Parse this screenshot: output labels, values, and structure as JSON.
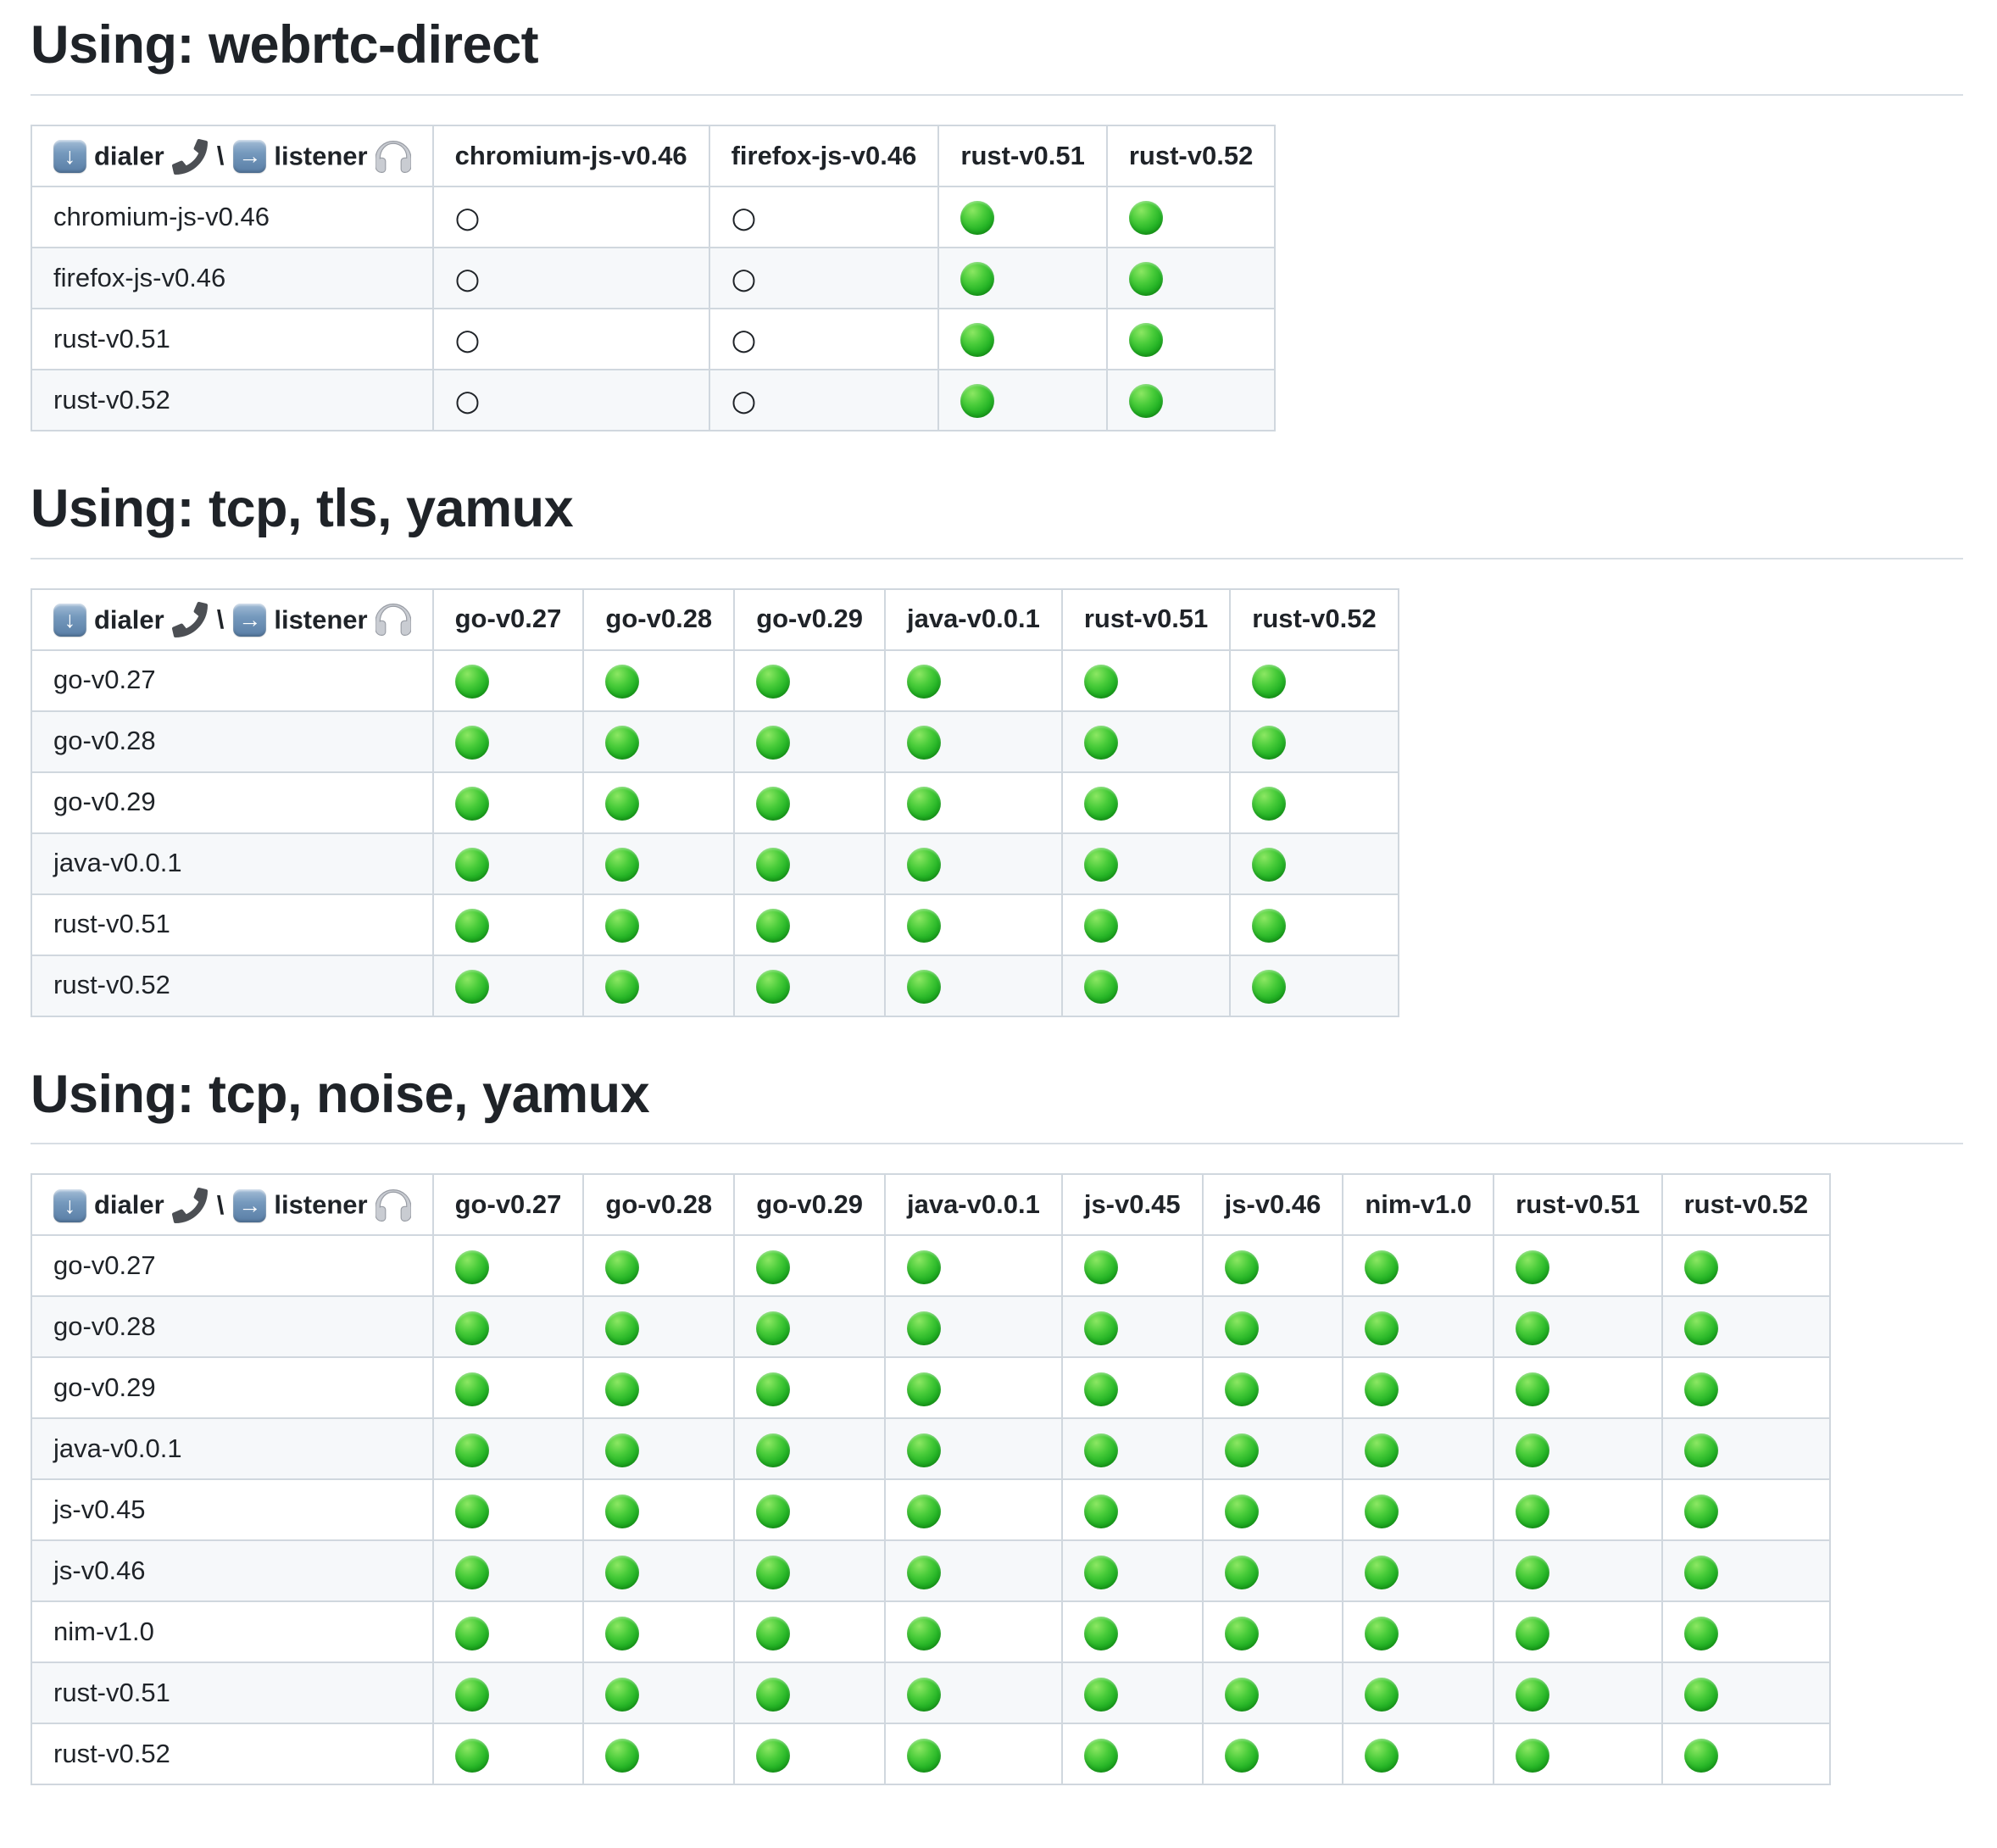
{
  "corner_header": {
    "dialer_label": "dialer",
    "listener_label": "listener",
    "separator": "\\",
    "down_arrow_glyph": "↓",
    "right_arrow_glyph": "→",
    "icons": [
      "down-arrow-button-icon",
      "telephone-receiver-icon",
      "right-arrow-button-icon",
      "headphones-icon"
    ]
  },
  "symbols": {
    "pass": {
      "name": "green-circle",
      "meaning": "success"
    },
    "fail": {
      "name": "white-circle",
      "meaning": "failure",
      "glyph": "○"
    }
  },
  "colors": {
    "pass_green": "#2bb42b",
    "row_stripe": "#f6f8fa",
    "table_border": "#d0d7de",
    "heading_rule": "#d8dee4",
    "text": "#1f2328",
    "arrow_button_blue": "#7599bd"
  },
  "sections": [
    {
      "heading": "Using: webrtc-direct",
      "columns": [
        "chromium-js-v0.46",
        "firefox-js-v0.46",
        "rust-v0.51",
        "rust-v0.52"
      ],
      "rows": [
        {
          "label": "chromium-js-v0.46",
          "cells": [
            "fail",
            "fail",
            "pass",
            "pass"
          ]
        },
        {
          "label": "firefox-js-v0.46",
          "cells": [
            "fail",
            "fail",
            "pass",
            "pass"
          ]
        },
        {
          "label": "rust-v0.51",
          "cells": [
            "fail",
            "fail",
            "pass",
            "pass"
          ]
        },
        {
          "label": "rust-v0.52",
          "cells": [
            "fail",
            "fail",
            "pass",
            "pass"
          ]
        }
      ]
    },
    {
      "heading": "Using: tcp, tls, yamux",
      "columns": [
        "go-v0.27",
        "go-v0.28",
        "go-v0.29",
        "java-v0.0.1",
        "rust-v0.51",
        "rust-v0.52"
      ],
      "rows": [
        {
          "label": "go-v0.27",
          "cells": [
            "pass",
            "pass",
            "pass",
            "pass",
            "pass",
            "pass"
          ]
        },
        {
          "label": "go-v0.28",
          "cells": [
            "pass",
            "pass",
            "pass",
            "pass",
            "pass",
            "pass"
          ]
        },
        {
          "label": "go-v0.29",
          "cells": [
            "pass",
            "pass",
            "pass",
            "pass",
            "pass",
            "pass"
          ]
        },
        {
          "label": "java-v0.0.1",
          "cells": [
            "pass",
            "pass",
            "pass",
            "pass",
            "pass",
            "pass"
          ]
        },
        {
          "label": "rust-v0.51",
          "cells": [
            "pass",
            "pass",
            "pass",
            "pass",
            "pass",
            "pass"
          ]
        },
        {
          "label": "rust-v0.52",
          "cells": [
            "pass",
            "pass",
            "pass",
            "pass",
            "pass",
            "pass"
          ]
        }
      ]
    },
    {
      "heading": "Using: tcp, noise, yamux",
      "columns": [
        "go-v0.27",
        "go-v0.28",
        "go-v0.29",
        "java-v0.0.1",
        "js-v0.45",
        "js-v0.46",
        "nim-v1.0",
        "rust-v0.51",
        "rust-v0.52"
      ],
      "rows": [
        {
          "label": "go-v0.27",
          "cells": [
            "pass",
            "pass",
            "pass",
            "pass",
            "pass",
            "pass",
            "pass",
            "pass",
            "pass"
          ]
        },
        {
          "label": "go-v0.28",
          "cells": [
            "pass",
            "pass",
            "pass",
            "pass",
            "pass",
            "pass",
            "pass",
            "pass",
            "pass"
          ]
        },
        {
          "label": "go-v0.29",
          "cells": [
            "pass",
            "pass",
            "pass",
            "pass",
            "pass",
            "pass",
            "pass",
            "pass",
            "pass"
          ]
        },
        {
          "label": "java-v0.0.1",
          "cells": [
            "pass",
            "pass",
            "pass",
            "pass",
            "pass",
            "pass",
            "pass",
            "pass",
            "pass"
          ]
        },
        {
          "label": "js-v0.45",
          "cells": [
            "pass",
            "pass",
            "pass",
            "pass",
            "pass",
            "pass",
            "pass",
            "pass",
            "pass"
          ]
        },
        {
          "label": "js-v0.46",
          "cells": [
            "pass",
            "pass",
            "pass",
            "pass",
            "pass",
            "pass",
            "pass",
            "pass",
            "pass"
          ]
        },
        {
          "label": "nim-v1.0",
          "cells": [
            "pass",
            "pass",
            "pass",
            "pass",
            "pass",
            "pass",
            "pass",
            "pass",
            "pass"
          ]
        },
        {
          "label": "rust-v0.51",
          "cells": [
            "pass",
            "pass",
            "pass",
            "pass",
            "pass",
            "pass",
            "pass",
            "pass",
            "pass"
          ]
        },
        {
          "label": "rust-v0.52",
          "cells": [
            "pass",
            "pass",
            "pass",
            "pass",
            "pass",
            "pass",
            "pass",
            "pass",
            "pass"
          ]
        }
      ]
    }
  ]
}
